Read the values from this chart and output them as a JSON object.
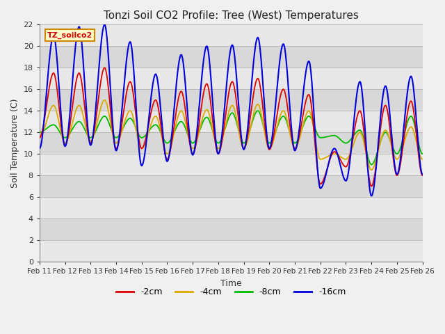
{
  "title": "Tonzi Soil CO2 Profile: Tree (West) Temperatures",
  "xlabel": "Time",
  "ylabel": "Soil Temperature (C)",
  "label_text": "TZ_soilco2",
  "ylim": [
    0,
    22
  ],
  "yticks": [
    0,
    2,
    4,
    6,
    8,
    10,
    12,
    14,
    16,
    18,
    20,
    22
  ],
  "date_labels": [
    "Feb 11",
    "Feb 12",
    "Feb 13",
    "Feb 14",
    "Feb 15",
    "Feb 16",
    "Feb 17",
    "Feb 18",
    "Feb 19",
    "Feb 20",
    "Feb 21",
    "Feb 22",
    "Feb 23",
    "Feb 24",
    "Feb 25",
    "Feb 26"
  ],
  "series": {
    "-2cm": {
      "color": "#dd0000",
      "lw": 1.3
    },
    "-4cm": {
      "color": "#ddaa00",
      "lw": 1.3
    },
    "-8cm": {
      "color": "#00bb00",
      "lw": 1.3
    },
    "-16cm": {
      "color": "#0000dd",
      "lw": 1.5
    }
  },
  "band_colors": [
    "#e8e8e8",
    "#d8d8d8"
  ],
  "fig_bg": "#f0f0f0"
}
